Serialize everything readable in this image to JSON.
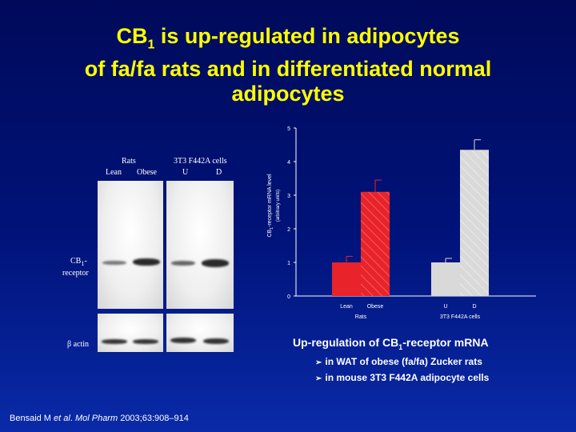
{
  "title": {
    "line1_pre": "CB",
    "line1_sub": "1",
    "line1_post": " is up-regulated in adipocytes",
    "line2": "of fa/fa rats and in differentiated normal",
    "line3": "adipocytes"
  },
  "blot": {
    "group_rats": "Rats",
    "group_cells": "3T3 F442A cells",
    "lane_lean": "Lean",
    "lane_obese": "Obese",
    "lane_u": "U",
    "lane_d": "D",
    "label_cb1_a": "CB",
    "label_cb1_sub": "1",
    "label_cb1_b": "-",
    "label_cb1_c": "receptor",
    "label_actin": "β actin"
  },
  "chart_data": {
    "type": "bar",
    "ylabel_main": "CB",
    "ylabel_sub": "1",
    "ylabel_rest": "-receptor mRNA level",
    "ylabel_units": "(arbitrary units)",
    "ylim": [
      0,
      5
    ],
    "yticks": [
      "0",
      "1",
      "2",
      "3",
      "4",
      "5"
    ],
    "groups": [
      {
        "label": "Rats",
        "categories": [
          "Lean",
          "Obese"
        ],
        "values": [
          1.0,
          3.1
        ],
        "errors": [
          0.18,
          0.35
        ],
        "colors": [
          "#e8232a",
          "#e8232a"
        ],
        "hatched": [
          false,
          true
        ]
      },
      {
        "label": "3T3 F442A cells",
        "categories": [
          "U",
          "D"
        ],
        "values": [
          1.0,
          4.35
        ],
        "errors": [
          0.12,
          0.3
        ],
        "colors": [
          "#d9d9d9",
          "#d9d9d9"
        ],
        "hatched": [
          false,
          true
        ]
      }
    ]
  },
  "caption": {
    "head_pre": "Up-regulation of CB",
    "head_sub": "1",
    "head_post": "-receptor mRNA",
    "item1": "in WAT of obese (fa/fa) Zucker rats",
    "item2": "in mouse 3T3 F442A adipocyte cells",
    "bullet": "➢"
  },
  "citation": {
    "pre": "Bensaid M ",
    "etal": "et al",
    "mid": ". ",
    "journal": "Mol Pharm",
    "post": " 2003;63:908–914"
  }
}
